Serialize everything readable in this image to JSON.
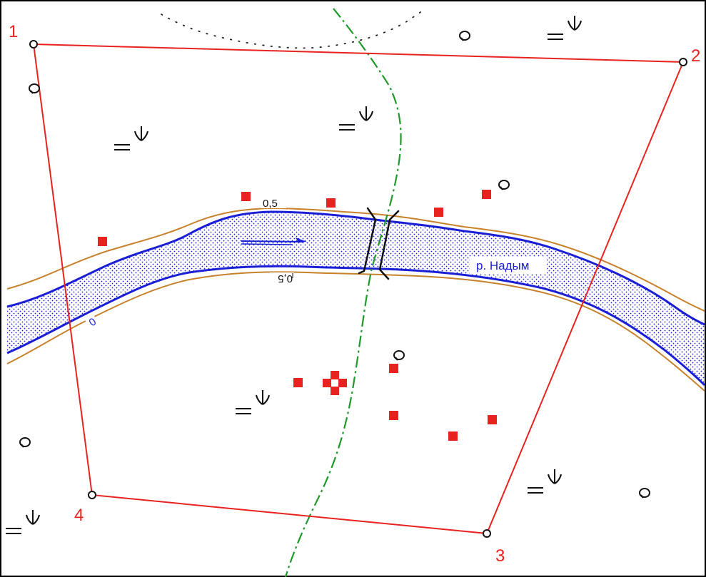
{
  "map": {
    "river_name": "р. Надым",
    "isobath_labels": {
      "upper": "0,5",
      "lower": "0,5",
      "zero": "0"
    },
    "vertex_labels": [
      "1",
      "2",
      "3",
      "4"
    ],
    "colors": {
      "boundary": "#e8231f",
      "river_edge": "#1a1fd6",
      "river_fill": "#1a1fd6",
      "isobath": "#c8822c",
      "trail": "#1f9a2a",
      "bridge": "#111111",
      "symbols": "#111111",
      "points": "#e8231f",
      "frame": "#000000"
    },
    "symbol_types": {
      "marsh": "marsh-vegetation-icon",
      "tree": "tree-circle-icon",
      "building": "building-square-icon",
      "cluster": "building-cluster-icon",
      "bridge": "bridge-icon",
      "flow": "flow-direction-arrow-icon",
      "boundary_point": "boundary-point-icon"
    }
  }
}
